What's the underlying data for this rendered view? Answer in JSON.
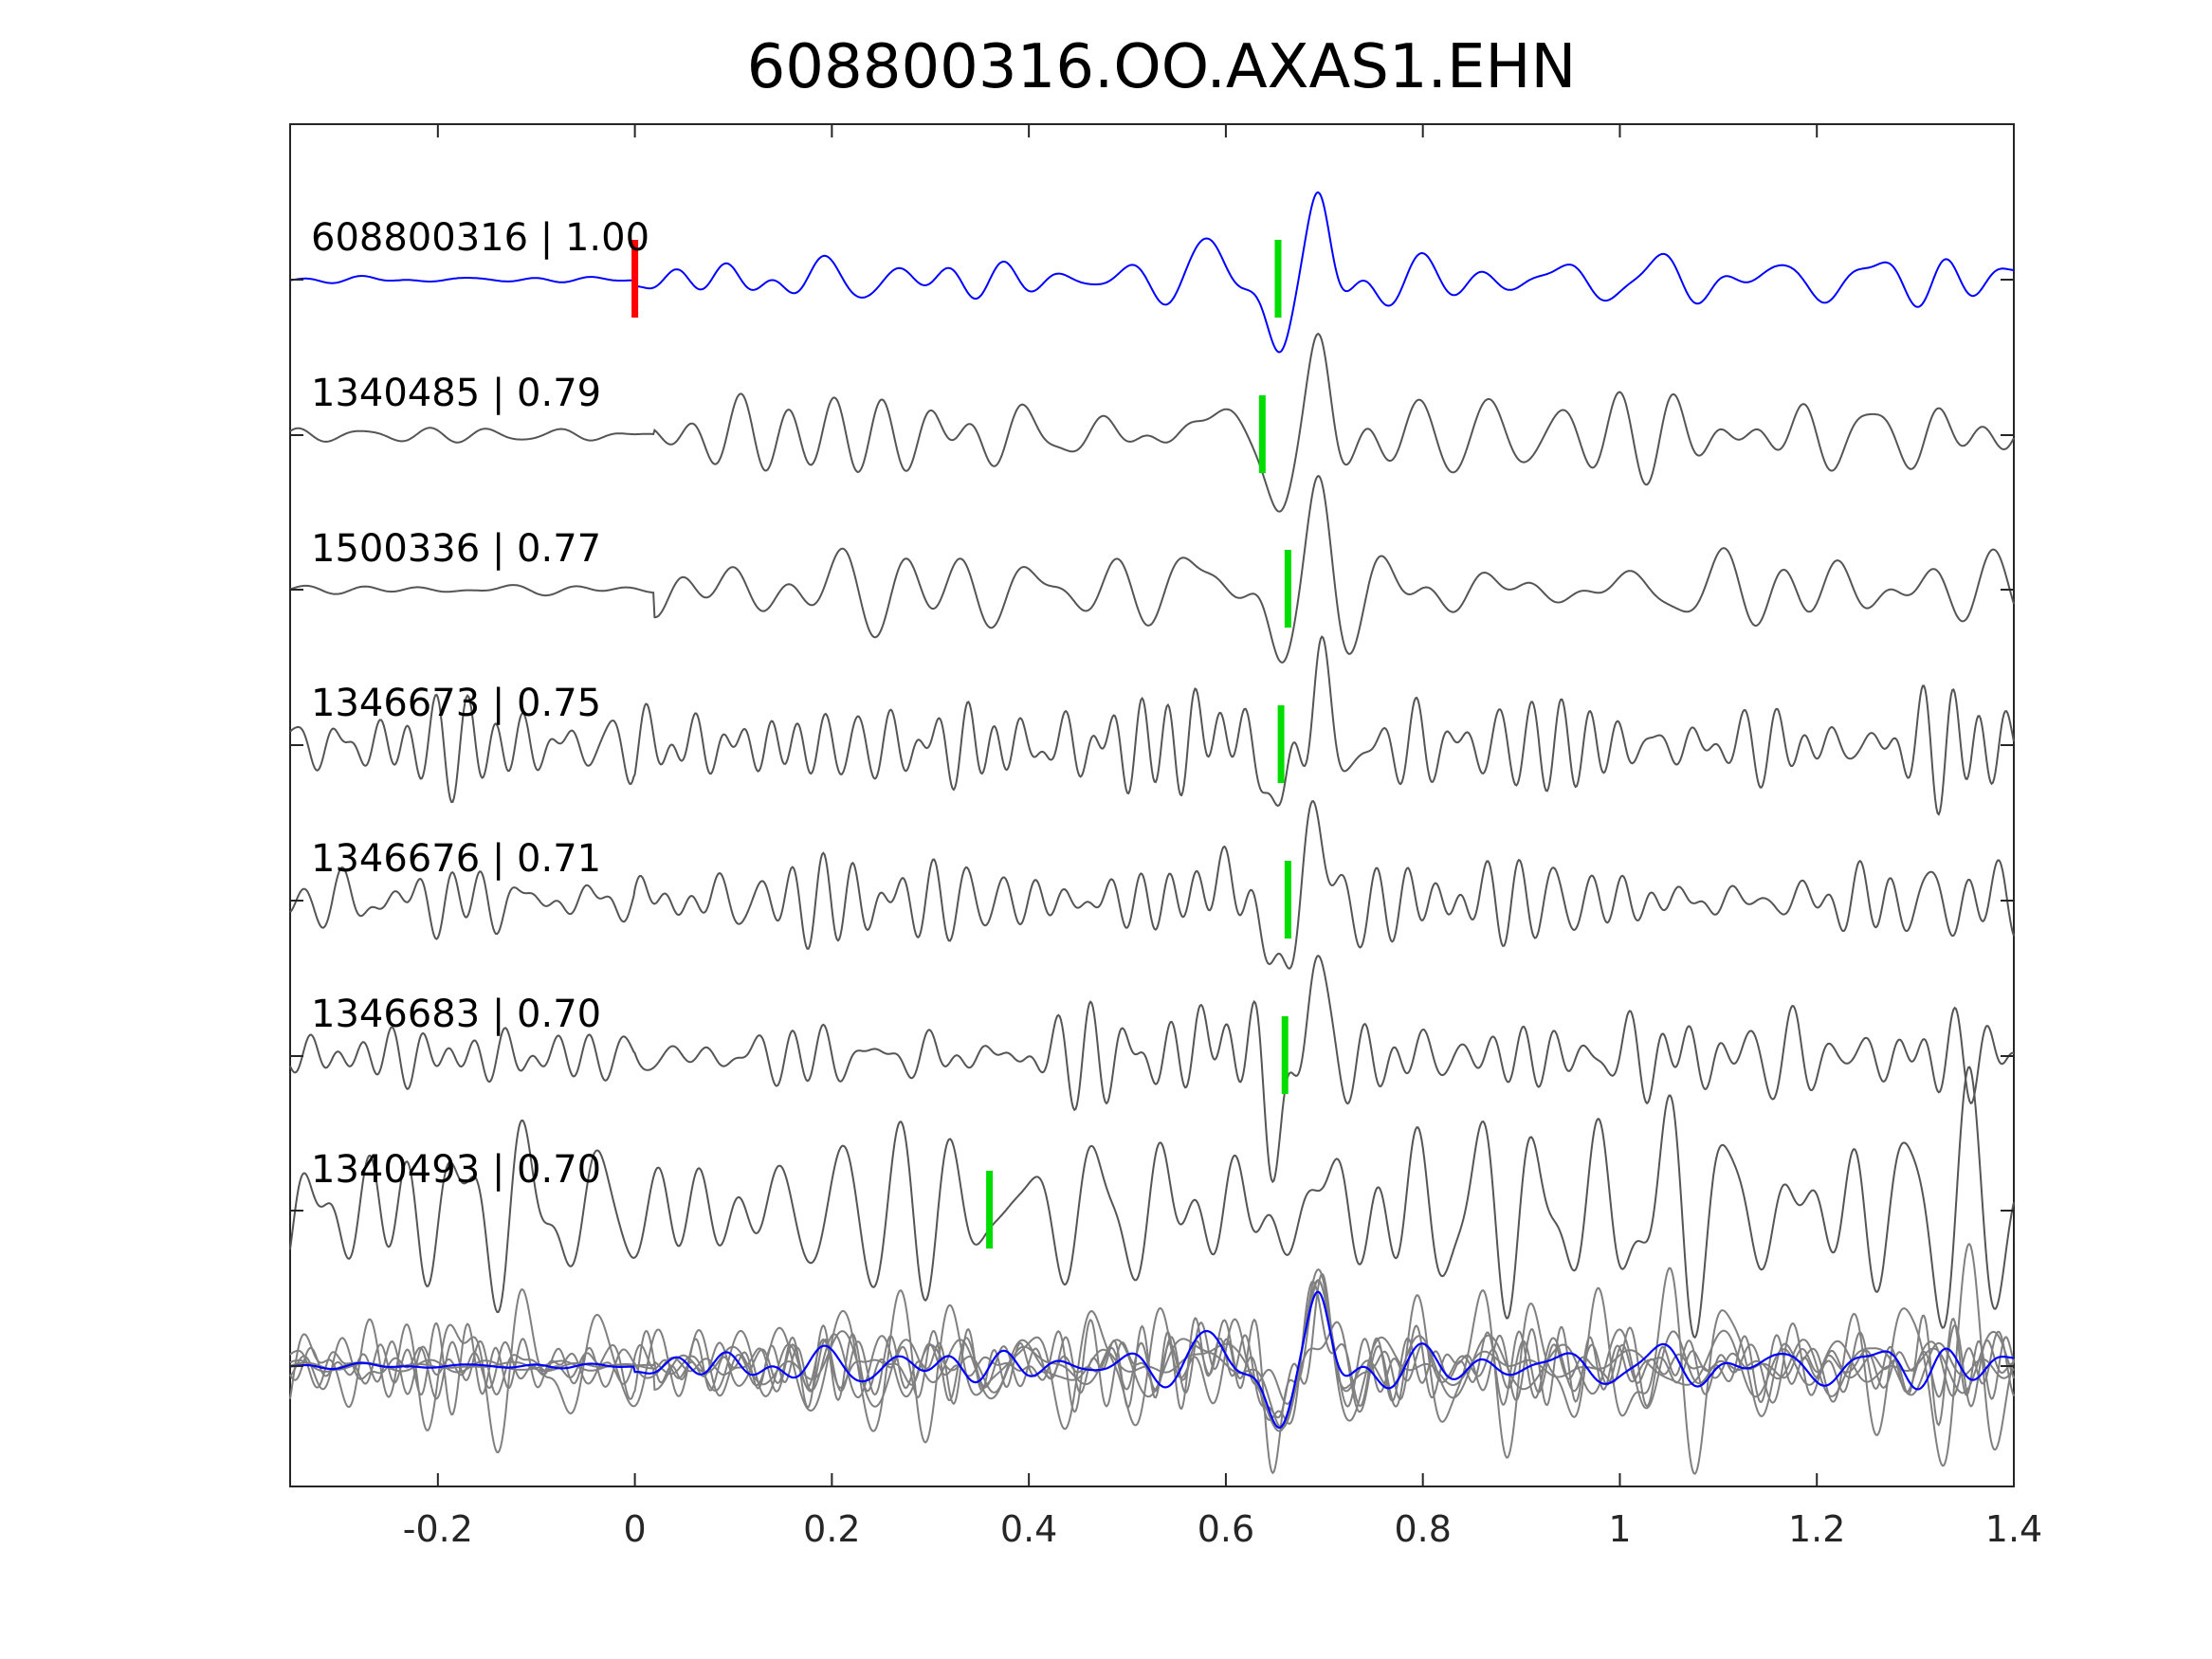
{
  "chart_data": {
    "type": "line",
    "title": "608800316.OO.AXAS1.EHN",
    "xlim": [
      -0.35,
      1.4
    ],
    "x_ticks": [
      -0.2,
      0,
      0.2,
      0.4,
      0.6,
      0.8,
      1,
      1.2,
      1.4
    ],
    "x_tick_labels": [
      "-0.2",
      "0",
      "0.2",
      "0.4",
      "0.6",
      "0.8",
      "1",
      "1.2",
      "1.4"
    ],
    "xlabel": "",
    "ylabel": "",
    "grid": false,
    "colors": {
      "template": "#0000ff",
      "match": "#555555",
      "overlay": "#808080",
      "pick_red": "#ff0000",
      "pick_green": "#00dd00"
    },
    "traces": [
      {
        "label": "608800316 | 1.00",
        "kind": "template",
        "picks": [
          {
            "x": 0.0,
            "color": "red"
          },
          {
            "x": 0.653,
            "color": "green"
          }
        ]
      },
      {
        "label": "1340485 | 0.79",
        "kind": "match",
        "picks": [
          {
            "x": 0.637,
            "color": "green"
          }
        ]
      },
      {
        "label": "1500336 | 0.77",
        "kind": "match",
        "picks": [
          {
            "x": 0.663,
            "color": "green"
          }
        ]
      },
      {
        "label": "1346673 | 0.75",
        "kind": "match",
        "picks": [
          {
            "x": 0.656,
            "color": "green"
          }
        ]
      },
      {
        "label": "1346676 | 0.71",
        "kind": "match",
        "picks": [
          {
            "x": 0.663,
            "color": "green"
          }
        ]
      },
      {
        "label": "1346683 | 0.70",
        "kind": "match",
        "picks": [
          {
            "x": 0.66,
            "color": "green"
          }
        ]
      },
      {
        "label": "1340493 | 0.70",
        "kind": "match",
        "picks": [
          {
            "x": 0.36,
            "color": "green"
          }
        ]
      }
    ],
    "stack": {
      "kind": "overlay",
      "label": ""
    }
  }
}
